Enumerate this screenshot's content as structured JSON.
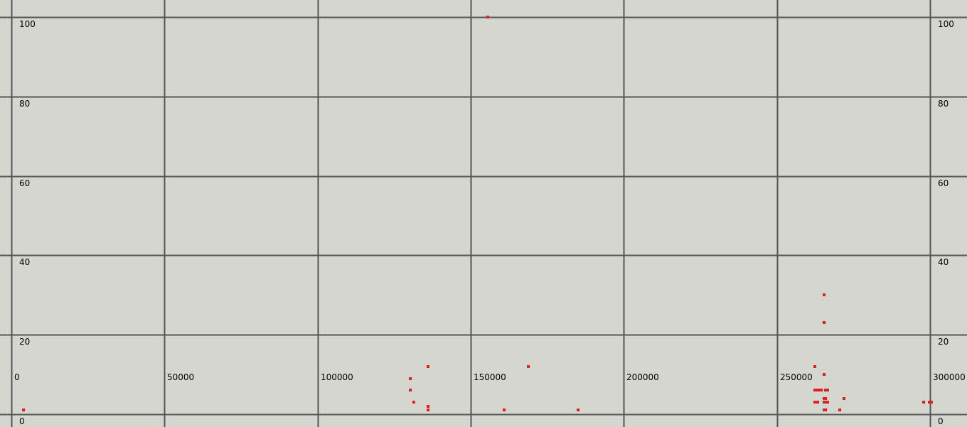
{
  "colors": {
    "background": "#d4d6cf",
    "grid": "#555555",
    "point": "#e0201e",
    "text": "#000000"
  },
  "chart_data": {
    "type": "scatter",
    "title": "",
    "xlabel": "",
    "ylabel": "",
    "xlim": [
      -3500,
      303000
    ],
    "ylim": [
      -1.5,
      102
    ],
    "grid": true,
    "x_ticks": [
      0,
      50000,
      100000,
      150000,
      200000,
      250000,
      300000
    ],
    "x_tick_labels": [
      "0",
      "50000",
      "100000",
      "150000",
      "200000",
      "250000",
      "300000"
    ],
    "y_ticks": [
      0,
      20,
      40,
      60,
      80,
      100
    ],
    "y_tick_labels": [
      "0",
      "20",
      "40",
      "60",
      "80",
      "100"
    ],
    "series": [
      {
        "points": [
          [
            4000,
            1
          ],
          [
            130200,
            9
          ],
          [
            130200,
            6
          ],
          [
            131400,
            3
          ],
          [
            136000,
            12
          ],
          [
            136000,
            2
          ],
          [
            136000,
            1
          ],
          [
            155600,
            100
          ],
          [
            161000,
            1
          ],
          [
            168800,
            12
          ],
          [
            185000,
            1
          ],
          [
            262400,
            12
          ],
          [
            262400,
            6
          ],
          [
            262400,
            3
          ],
          [
            263200,
            6
          ],
          [
            263200,
            3
          ],
          [
            263600,
            6
          ],
          [
            264400,
            6
          ],
          [
            265300,
            30
          ],
          [
            265300,
            23
          ],
          [
            265300,
            10
          ],
          [
            265300,
            4
          ],
          [
            265300,
            3
          ],
          [
            265300,
            1
          ],
          [
            265800,
            6
          ],
          [
            265800,
            4
          ],
          [
            265800,
            3
          ],
          [
            265800,
            1
          ],
          [
            266600,
            6
          ],
          [
            266600,
            3
          ],
          [
            270600,
            1
          ],
          [
            272000,
            4
          ],
          [
            298000,
            3
          ],
          [
            299800,
            3
          ],
          [
            300500,
            3
          ]
        ]
      }
    ]
  }
}
